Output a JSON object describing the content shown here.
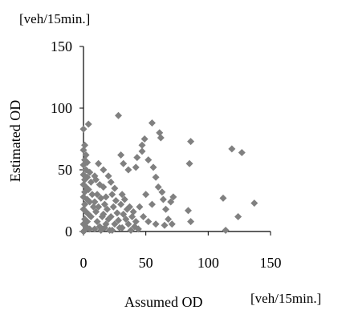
{
  "chart_data": {
    "type": "scatter",
    "title": "",
    "xlabel": "Assumed OD",
    "ylabel": "Estimated OD",
    "x_unit": "[veh/15min.]",
    "y_unit": "[veh/15min.]",
    "xlim": [
      0,
      150
    ],
    "ylim": [
      0,
      150
    ],
    "xticks": [
      0,
      50,
      100,
      150
    ],
    "yticks": [
      0,
      50,
      100,
      150
    ],
    "grid": false,
    "legend": "none",
    "marker": "diamond",
    "marker_color": "#808080",
    "series": [
      {
        "points": [
          [
            0,
            83
          ],
          [
            4,
            87
          ],
          [
            1,
            70
          ],
          [
            0,
            66
          ],
          [
            2,
            62
          ],
          [
            1,
            58
          ],
          [
            3,
            56
          ],
          [
            0,
            54
          ],
          [
            2,
            50
          ],
          [
            5,
            48
          ],
          [
            0,
            46
          ],
          [
            3,
            44
          ],
          [
            1,
            42
          ],
          [
            6,
            40
          ],
          [
            0,
            38
          ],
          [
            2,
            36
          ],
          [
            4,
            34
          ],
          [
            1,
            32
          ],
          [
            7,
            30
          ],
          [
            0,
            28
          ],
          [
            3,
            26
          ],
          [
            5,
            24
          ],
          [
            1,
            22
          ],
          [
            8,
            20
          ],
          [
            0,
            18
          ],
          [
            2,
            16
          ],
          [
            4,
            14
          ],
          [
            6,
            12
          ],
          [
            1,
            10
          ],
          [
            3,
            8
          ],
          [
            0,
            6
          ],
          [
            2,
            4
          ],
          [
            5,
            2
          ],
          [
            1,
            1
          ],
          [
            0,
            0
          ],
          [
            9,
            45
          ],
          [
            12,
            55
          ],
          [
            10,
            42
          ],
          [
            13,
            38
          ],
          [
            11,
            30
          ],
          [
            14,
            27
          ],
          [
            9,
            24
          ],
          [
            12,
            20
          ],
          [
            10,
            16
          ],
          [
            15,
            12
          ],
          [
            11,
            8
          ],
          [
            13,
            4
          ],
          [
            9,
            2
          ],
          [
            14,
            1
          ],
          [
            16,
            36
          ],
          [
            18,
            28
          ],
          [
            17,
            22
          ],
          [
            19,
            18
          ],
          [
            16,
            14
          ],
          [
            20,
            10
          ],
          [
            18,
            6
          ],
          [
            17,
            3
          ],
          [
            21,
            1
          ],
          [
            16,
            50
          ],
          [
            20,
            45
          ],
          [
            22,
            40
          ],
          [
            25,
            35
          ],
          [
            23,
            30
          ],
          [
            26,
            25
          ],
          [
            24,
            20
          ],
          [
            27,
            15
          ],
          [
            22,
            12
          ],
          [
            28,
            9
          ],
          [
            25,
            6
          ],
          [
            29,
            3
          ],
          [
            23,
            1
          ],
          [
            31,
            30
          ],
          [
            33,
            26
          ],
          [
            30,
            22
          ],
          [
            35,
            18
          ],
          [
            32,
            14
          ],
          [
            34,
            10
          ],
          [
            36,
            6
          ],
          [
            31,
            3
          ],
          [
            38,
            1
          ],
          [
            37,
            20
          ],
          [
            40,
            16
          ],
          [
            39,
            12
          ],
          [
            42,
            8
          ],
          [
            41,
            4
          ],
          [
            44,
            2
          ],
          [
            28,
            94
          ],
          [
            30,
            62
          ],
          [
            32,
            55
          ],
          [
            36,
            50
          ],
          [
            42,
            52
          ],
          [
            43,
            60
          ],
          [
            47,
            65
          ],
          [
            49,
            75
          ],
          [
            47,
            70
          ],
          [
            55,
            88
          ],
          [
            61,
            80
          ],
          [
            62,
            76
          ],
          [
            52,
            58
          ],
          [
            56,
            52
          ],
          [
            58,
            44
          ],
          [
            60,
            36
          ],
          [
            63,
            32
          ],
          [
            64,
            26
          ],
          [
            50,
            30
          ],
          [
            55,
            22
          ],
          [
            45,
            20
          ],
          [
            48,
            12
          ],
          [
            52,
            8
          ],
          [
            58,
            6
          ],
          [
            66,
            18
          ],
          [
            68,
            10
          ],
          [
            70,
            24
          ],
          [
            72,
            28
          ],
          [
            71,
            6
          ],
          [
            65,
            5
          ],
          [
            86,
            73
          ],
          [
            85,
            55
          ],
          [
            84,
            17
          ],
          [
            86,
            8
          ],
          [
            112,
            27
          ],
          [
            114,
            1
          ],
          [
            119,
            67
          ],
          [
            127,
            64
          ],
          [
            137,
            23
          ],
          [
            124,
            12
          ]
        ]
      }
    ]
  }
}
